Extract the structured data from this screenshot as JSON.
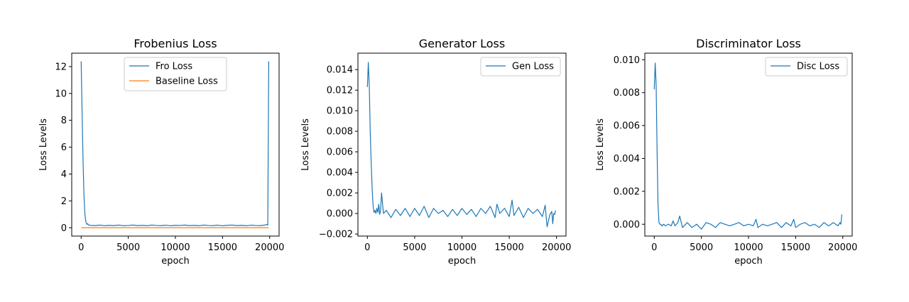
{
  "chart_data": [
    {
      "type": "line",
      "title": "Frobenius Loss",
      "xlabel": "epoch",
      "ylabel": "Loss Levels",
      "xlim": [
        -1000,
        21000
      ],
      "ylim": [
        -0.62,
        13.0
      ],
      "xticks": [
        0,
        5000,
        10000,
        15000,
        20000
      ],
      "yticks": [
        0,
        2,
        4,
        6,
        8,
        10,
        12
      ],
      "ytick_labels": [
        "0",
        "2",
        "4",
        "6",
        "8",
        "10",
        "12"
      ],
      "legend": "upper center",
      "series": [
        {
          "name": "Fro Loss",
          "color": "#1f77b4",
          "x": [
            0,
            100,
            200,
            300,
            400,
            500,
            600,
            700,
            800,
            1000,
            1500,
            2000,
            2500,
            3000,
            3500,
            4000,
            4500,
            5000,
            5500,
            6000,
            6500,
            7000,
            7500,
            8000,
            8500,
            9000,
            9500,
            10000,
            10500,
            11000,
            11500,
            12000,
            12500,
            13000,
            13500,
            14000,
            14500,
            15000,
            15500,
            16000,
            16500,
            17000,
            17500,
            18000,
            18500,
            19000,
            19500,
            19700,
            19800,
            19900
          ],
          "y": [
            12.4,
            8.6,
            5.0,
            2.4,
            1.0,
            0.45,
            0.25,
            0.3,
            0.2,
            0.18,
            0.16,
            0.2,
            0.15,
            0.18,
            0.16,
            0.2,
            0.15,
            0.17,
            0.2,
            0.16,
            0.18,
            0.15,
            0.2,
            0.17,
            0.16,
            0.19,
            0.15,
            0.18,
            0.17,
            0.2,
            0.16,
            0.18,
            0.15,
            0.2,
            0.17,
            0.16,
            0.19,
            0.15,
            0.18,
            0.2,
            0.16,
            0.18,
            0.15,
            0.19,
            0.17,
            0.16,
            0.2,
            0.25,
            0.2,
            12.4
          ]
        },
        {
          "name": "Baseline Loss",
          "color": "#ff7f0e",
          "x": [
            0,
            19900
          ],
          "y": [
            0.0,
            0.0
          ]
        }
      ]
    },
    {
      "type": "line",
      "title": "Generator Loss",
      "xlabel": "epoch",
      "ylabel": "Loss Levels",
      "xlim": [
        -1000,
        21000
      ],
      "ylim": [
        -0.0022,
        0.0156
      ],
      "xticks": [
        0,
        5000,
        10000,
        15000,
        20000
      ],
      "yticks": [
        -0.002,
        0.0,
        0.002,
        0.004,
        0.006,
        0.008,
        0.01,
        0.012,
        0.014
      ],
      "ytick_labels": [
        "−0.002",
        "0.000",
        "0.002",
        "0.004",
        "0.006",
        "0.008",
        "0.010",
        "0.012",
        "0.014"
      ],
      "legend": "upper right",
      "series": [
        {
          "name": "Gen Loss",
          "color": "#1f77b4",
          "x": [
            0,
            100,
            200,
            300,
            400,
            500,
            600,
            700,
            800,
            900,
            1000,
            1100,
            1200,
            1300,
            1400,
            1500,
            1700,
            2000,
            2500,
            3000,
            3500,
            4000,
            4500,
            5000,
            5500,
            6000,
            6500,
            7000,
            7500,
            8000,
            8500,
            9000,
            9500,
            10000,
            10500,
            11000,
            11500,
            12000,
            12500,
            13000,
            13500,
            13700,
            14000,
            14500,
            15000,
            15300,
            15500,
            16000,
            16500,
            17000,
            17500,
            18000,
            18500,
            18800,
            19000,
            19300,
            19500,
            19600,
            19700,
            19800,
            19900
          ],
          "y": [
            0.0123,
            0.0147,
            0.0125,
            0.008,
            0.005,
            0.0025,
            0.0008,
            0.0001,
            0.0003,
            0.0,
            0.0005,
            0.0001,
            0.0009,
            -0.0001,
            0.0003,
            0.002,
            0.0,
            0.0003,
            -0.0004,
            0.0004,
            -0.0002,
            0.0005,
            -0.0003,
            0.0005,
            -0.0002,
            0.0007,
            -0.0004,
            0.0005,
            0.0,
            0.0003,
            -0.0003,
            0.0004,
            -0.0002,
            0.0005,
            -0.0001,
            0.0004,
            -0.0003,
            0.0005,
            0.0,
            0.0007,
            -0.0004,
            0.0009,
            0.0,
            0.0005,
            -0.0003,
            0.0013,
            -0.0002,
            0.0006,
            -0.0004,
            0.0005,
            0.0,
            0.0004,
            -0.0003,
            0.0008,
            -0.0013,
            -0.0001,
            0.0002,
            -0.001,
            0.0,
            -0.0001,
            0.0003
          ]
        }
      ]
    },
    {
      "type": "line",
      "title": "Discriminator Loss",
      "xlabel": "epoch",
      "ylabel": "Loss Levels",
      "xlim": [
        -1000,
        21000
      ],
      "ylim": [
        -0.00072,
        0.0104
      ],
      "xticks": [
        0,
        5000,
        10000,
        15000,
        20000
      ],
      "yticks": [
        0.0,
        0.002,
        0.004,
        0.006,
        0.008,
        0.01
      ],
      "ytick_labels": [
        "0.000",
        "0.002",
        "0.004",
        "0.006",
        "0.008",
        "0.010"
      ],
      "legend": "upper right",
      "series": [
        {
          "name": "Disc Loss",
          "color": "#1f77b4",
          "x": [
            0,
            100,
            200,
            300,
            400,
            500,
            600,
            700,
            800,
            1000,
            1200,
            1500,
            1800,
            2000,
            2200,
            2500,
            2700,
            3000,
            3500,
            4000,
            4500,
            5000,
            5500,
            6000,
            6500,
            7000,
            7500,
            8000,
            8500,
            9000,
            9500,
            10000,
            10500,
            10800,
            11000,
            11500,
            12000,
            12500,
            13000,
            13500,
            14000,
            14500,
            14800,
            15000,
            15500,
            16000,
            16500,
            17000,
            17500,
            18000,
            18500,
            19000,
            19500,
            19700,
            19800,
            19900
          ],
          "y": [
            0.0082,
            0.0098,
            0.0085,
            0.0045,
            0.0012,
            0.0001,
            0.0,
            0.0,
            -0.0001,
            0.0,
            -0.0001,
            0.0,
            -0.0001,
            0.0002,
            -0.0001,
            0.0001,
            0.0005,
            -0.0002,
            0.0001,
            -0.0002,
            0.0,
            -0.0003,
            0.0001,
            0.0,
            -0.0002,
            0.0001,
            0.0,
            -0.0001,
            0.0,
            0.0001,
            -0.0001,
            0.0,
            -0.0001,
            0.0003,
            -0.0002,
            0.0,
            -0.0001,
            0.0,
            0.0001,
            -0.0002,
            0.0001,
            -0.0001,
            0.0003,
            -0.0002,
            0.0,
            0.0001,
            -0.0001,
            0.0,
            -0.0002,
            0.0001,
            -0.0001,
            0.0001,
            -0.0001,
            0.0001,
            0.0,
            0.0006
          ]
        }
      ]
    }
  ]
}
